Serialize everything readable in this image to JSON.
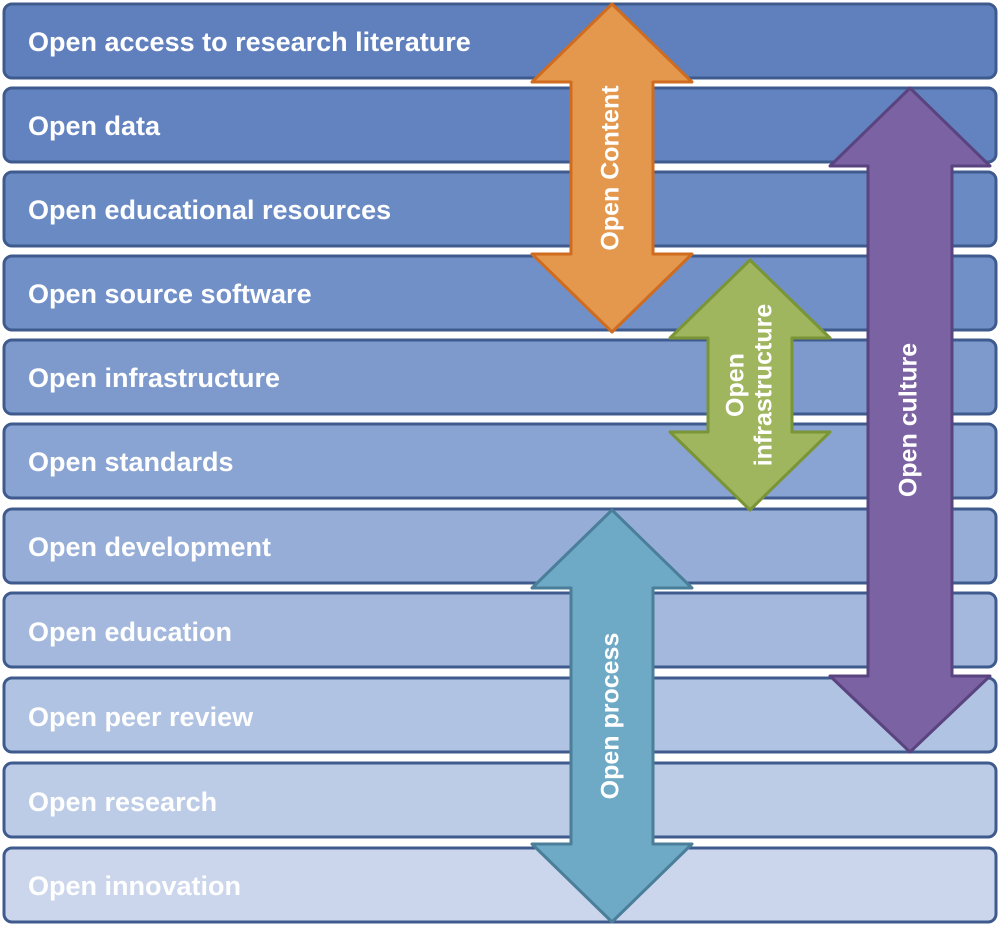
{
  "rows": [
    {
      "label": "Open access to research literature",
      "color": "#5f7fbd"
    },
    {
      "label": "Open data",
      "color": "#6283c0"
    },
    {
      "label": "Open educational resources",
      "color": "#6a8ac4"
    },
    {
      "label": "Open source software",
      "color": "#7290c8"
    },
    {
      "label": "Open infrastructure",
      "color": "#7e9acd"
    },
    {
      "label": "Open standards",
      "color": "#89a3d2"
    },
    {
      "label": "Open development",
      "color": "#96aed7"
    },
    {
      "label": "Open education",
      "color": "#a3b8dc"
    },
    {
      "label": "Open peer review",
      "color": "#b1c3e2"
    },
    {
      "label": "Open research",
      "color": "#bccbe6"
    },
    {
      "label": "Open innovation",
      "color": "#cbd6ec"
    }
  ],
  "arrows": {
    "open_content": {
      "label": "Open Content",
      "fill": "#e3984e",
      "stroke": "#cf6c1f"
    },
    "open_infrastructure": {
      "line1": "Open",
      "line2": "infrastructure",
      "fill": "#9fb55e",
      "stroke": "#7a9535"
    },
    "open_culture": {
      "label": "Open culture",
      "fill": "#7b62a3",
      "stroke": "#5a447f"
    },
    "open_process": {
      "label": "Open process",
      "fill": "#6ea9c6",
      "stroke": "#4b7f99"
    }
  }
}
